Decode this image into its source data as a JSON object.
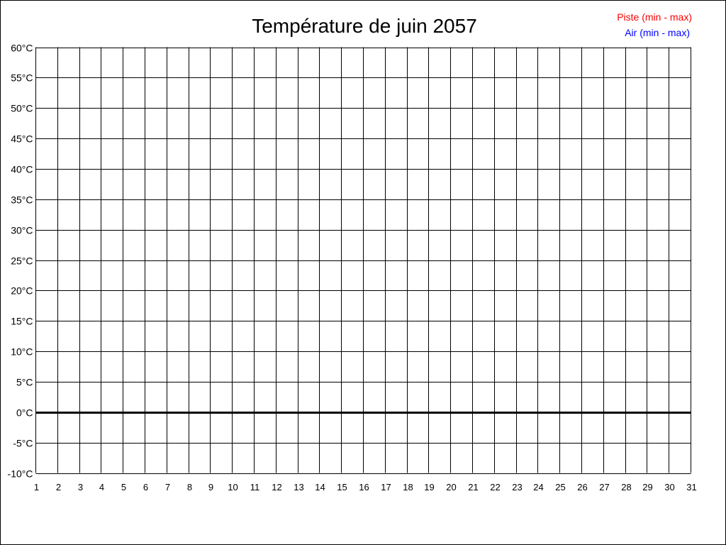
{
  "chart_data": {
    "type": "line",
    "title": "Température de juin 2057",
    "xlabel": "",
    "ylabel": "",
    "x_ticks": [
      "1",
      "2",
      "3",
      "4",
      "5",
      "6",
      "7",
      "8",
      "9",
      "10",
      "11",
      "12",
      "13",
      "14",
      "15",
      "16",
      "17",
      "18",
      "19",
      "20",
      "21",
      "22",
      "23",
      "24",
      "25",
      "26",
      "27",
      "28",
      "29",
      "30",
      "31"
    ],
    "y_ticks": [
      "60°C",
      "55°C",
      "50°C",
      "45°C",
      "40°C",
      "35°C",
      "30°C",
      "25°C",
      "20°C",
      "15°C",
      "10°C",
      "5°C",
      "0°C",
      "-5°C",
      "-10°C"
    ],
    "xlim": [
      1,
      31
    ],
    "ylim": [
      -10,
      60
    ],
    "grid": true,
    "legend_placement": "top-right",
    "series": [
      {
        "name": "Piste (min - max)",
        "color": "#ff0000",
        "values": []
      },
      {
        "name": "Air (min - max)",
        "color": "#0000ff",
        "values": []
      }
    ]
  }
}
